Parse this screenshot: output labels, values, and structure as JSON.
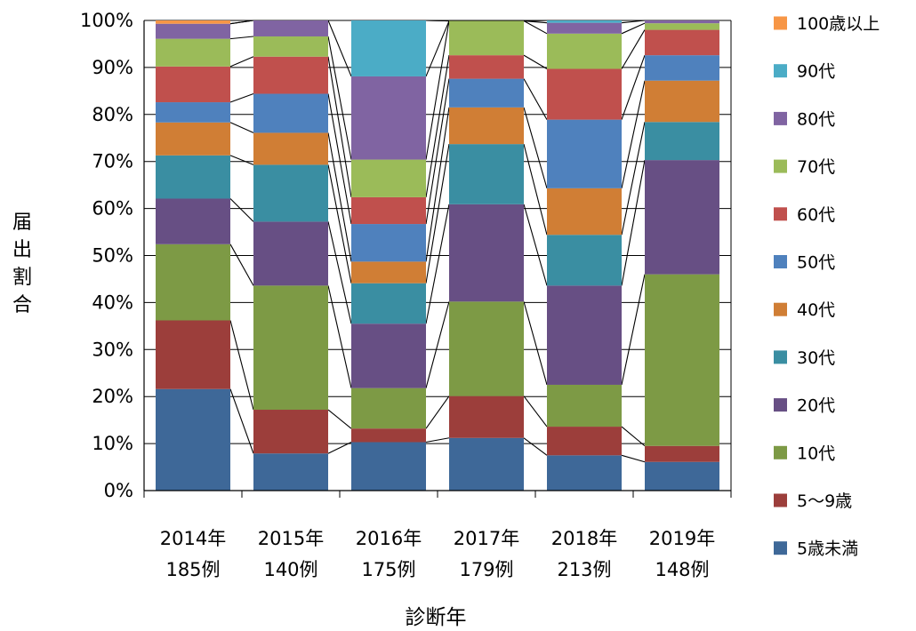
{
  "chart_data": {
    "type": "bar",
    "stacked": true,
    "normalized": true,
    "title": "",
    "xlabel": "診断年",
    "ylabel": "届出割合",
    "ylim": [
      0,
      100
    ],
    "y_ticks": [
      "0%",
      "10%",
      "20%",
      "30%",
      "40%",
      "50%",
      "60%",
      "70%",
      "80%",
      "90%",
      "100%"
    ],
    "grid": true,
    "legend_position": "right",
    "categories": [
      {
        "year": "2014年",
        "count": "185例"
      },
      {
        "year": "2015年",
        "count": "140例"
      },
      {
        "year": "2016年",
        "count": "175例"
      },
      {
        "year": "2017年",
        "count": "179例"
      },
      {
        "year": "2018年",
        "count": "213例"
      },
      {
        "year": "2019年",
        "count": "148例"
      }
    ],
    "series": [
      {
        "name": "5歳未満",
        "color": "#3E6898",
        "values": [
          21.6,
          7.9,
          10.3,
          11.2,
          7.5,
          6.1
        ]
      },
      {
        "name": "5～9歳",
        "color": "#9C3E3B",
        "values": [
          14.6,
          9.3,
          2.9,
          8.9,
          6.1,
          3.4
        ]
      },
      {
        "name": "10代",
        "color": "#7D9A45",
        "values": [
          16.2,
          26.4,
          8.6,
          20.1,
          8.9,
          36.5
        ]
      },
      {
        "name": "20代",
        "color": "#674F84",
        "values": [
          9.7,
          13.6,
          13.7,
          20.7,
          21.1,
          24.3
        ]
      },
      {
        "name": "30代",
        "color": "#3A8EA2",
        "values": [
          9.2,
          12.1,
          8.6,
          12.8,
          10.8,
          8.1
        ]
      },
      {
        "name": "40代",
        "color": "#D07E35",
        "values": [
          7.0,
          6.8,
          4.6,
          7.8,
          9.9,
          8.8
        ]
      },
      {
        "name": "50代",
        "color": "#4F81BD",
        "values": [
          4.3,
          8.3,
          8.0,
          6.1,
          14.6,
          5.4
        ]
      },
      {
        "name": "60代",
        "color": "#C0504D",
        "values": [
          7.6,
          7.9,
          5.7,
          5.0,
          10.8,
          5.4
        ]
      },
      {
        "name": "70代",
        "color": "#9BBB59",
        "values": [
          5.9,
          4.3,
          8.0,
          7.3,
          7.5,
          1.4
        ]
      },
      {
        "name": "80代",
        "color": "#8064A2",
        "values": [
          3.2,
          3.6,
          17.7,
          0,
          2.3,
          0.7
        ]
      },
      {
        "name": "90代",
        "color": "#4BACC6",
        "values": [
          0,
          0,
          12.0,
          0,
          0.5,
          0
        ]
      },
      {
        "name": "100歳以上",
        "color": "#F79646",
        "values": [
          0.7,
          0,
          0,
          0,
          0,
          0
        ]
      }
    ]
  }
}
